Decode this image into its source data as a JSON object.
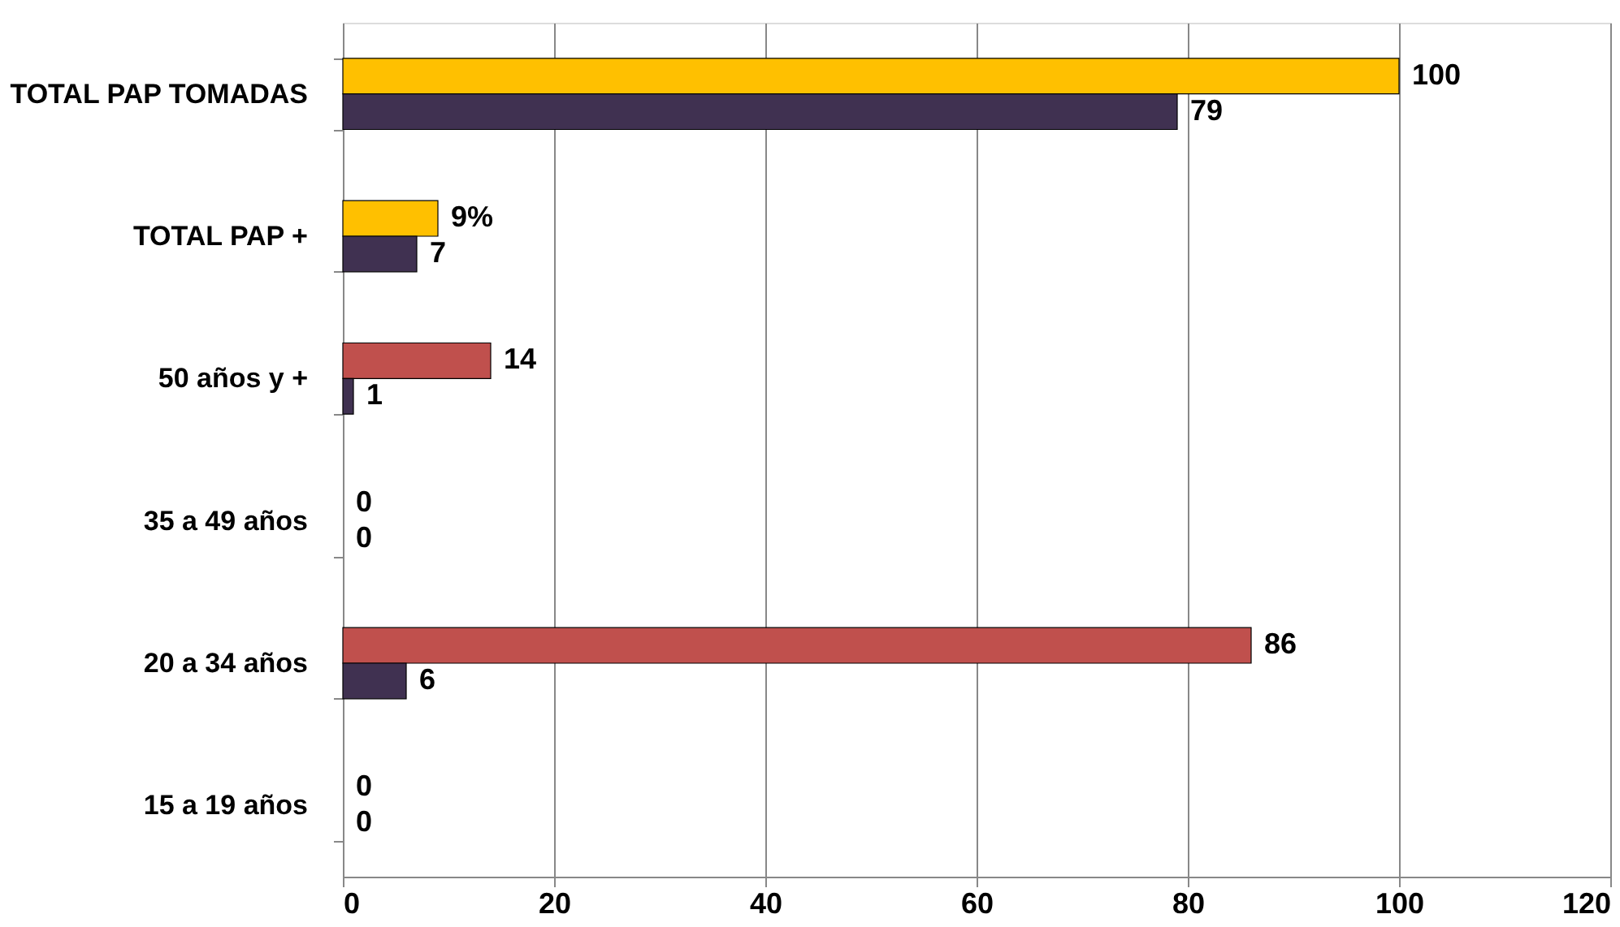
{
  "chart_data": {
    "type": "bar",
    "orientation": "horizontal",
    "categories": [
      "TOTAL PAP TOMADAS",
      "TOTAL PAP +",
      "50 años y +",
      "35 a 49 años",
      "20 a 34 años",
      "15 a 19 años"
    ],
    "series": [
      {
        "colors": [
          "#ffc000",
          "#ffc000",
          "#c0504d",
          "#c0504d",
          "#c0504d",
          "#c0504d"
        ],
        "values": [
          100,
          9,
          14,
          0,
          86,
          0
        ],
        "value_labels": [
          "100",
          "9%",
          "14",
          "0",
          "86",
          "0"
        ]
      },
      {
        "color": "#403151",
        "values": [
          79,
          7,
          1,
          0,
          6,
          0
        ],
        "value_labels": [
          "79",
          "7",
          "1",
          "0",
          "6",
          "0"
        ]
      }
    ],
    "xlim": [
      0,
      120
    ],
    "xticks": [
      0,
      20,
      40,
      60,
      80,
      100,
      120
    ],
    "grid": "x"
  }
}
